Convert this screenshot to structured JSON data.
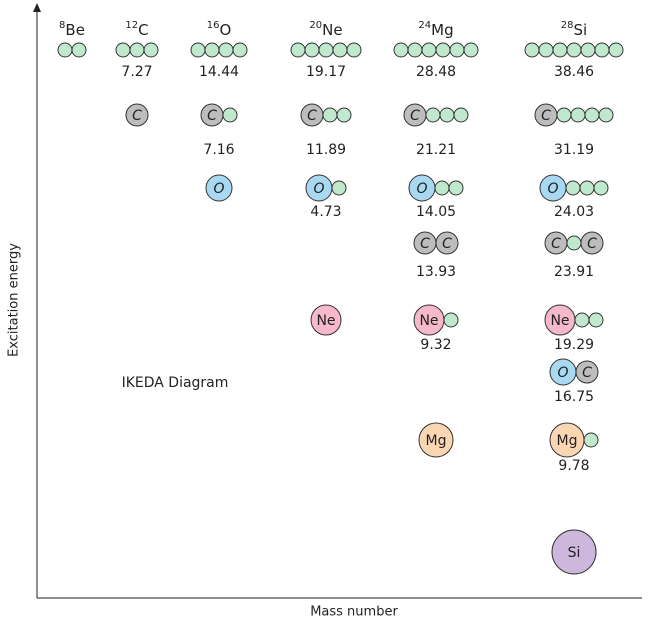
{
  "title": "IKEDA Diagram",
  "axes": {
    "y_label": "Excitation energy",
    "x_label": "Mass number"
  },
  "columns": [
    {
      "mass": "8",
      "symbol": "Be",
      "states": [
        {
          "parts": [
            null,
            null
          ]
        }
      ]
    },
    {
      "mass": "12",
      "symbol": "C",
      "states": [
        {
          "parts": [
            null,
            null,
            null
          ],
          "energy": "7.27"
        },
        {
          "parts": [
            "C"
          ]
        }
      ]
    },
    {
      "mass": "16",
      "symbol": "O",
      "states": [
        {
          "parts": [
            null,
            null,
            null,
            null
          ],
          "energy": "14.44"
        },
        {
          "parts": [
            "C",
            null
          ],
          "energy": "7.16"
        },
        {
          "parts": [
            "O"
          ]
        }
      ]
    },
    {
      "mass": "20",
      "symbol": "Ne",
      "states": [
        {
          "parts": [
            null,
            null,
            null,
            null,
            null
          ],
          "energy": "19.17"
        },
        {
          "parts": [
            "C",
            null,
            null
          ],
          "energy": "11.89"
        },
        {
          "parts": [
            "O",
            null
          ],
          "energy": "4.73"
        },
        {
          "parts": [
            "Ne"
          ]
        }
      ]
    },
    {
      "mass": "24",
      "symbol": "Mg",
      "states": [
        {
          "parts": [
            null,
            null,
            null,
            null,
            null,
            null
          ],
          "energy": "28.48"
        },
        {
          "parts": [
            "C",
            null,
            null,
            null
          ],
          "energy": "21.21"
        },
        {
          "parts": [
            "O",
            null,
            null
          ],
          "energy": "14.05"
        },
        {
          "parts": [
            "C",
            "C"
          ],
          "energy": "13.93"
        },
        {
          "parts": [
            "Ne",
            null
          ],
          "energy": "9.32"
        },
        {
          "parts": [
            "Mg"
          ]
        }
      ]
    },
    {
      "mass": "28",
      "symbol": "Si",
      "states": [
        {
          "parts": [
            null,
            null,
            null,
            null,
            null,
            null,
            null
          ],
          "energy": "38.46"
        },
        {
          "parts": [
            "C",
            null,
            null,
            null,
            null
          ],
          "energy": "31.19"
        },
        {
          "parts": [
            "O",
            null,
            null,
            null
          ],
          "energy": "24.03"
        },
        {
          "parts": [
            "C",
            null,
            "C"
          ],
          "energy": "23.91"
        },
        {
          "parts": [
            "Ne",
            null,
            null
          ],
          "energy": "19.29"
        },
        {
          "parts": [
            "O",
            "C"
          ],
          "energy": "16.75"
        },
        {
          "parts": [
            "Mg",
            null
          ],
          "energy": "9.78"
        },
        {
          "parts": [
            "Si"
          ]
        }
      ]
    }
  ]
}
